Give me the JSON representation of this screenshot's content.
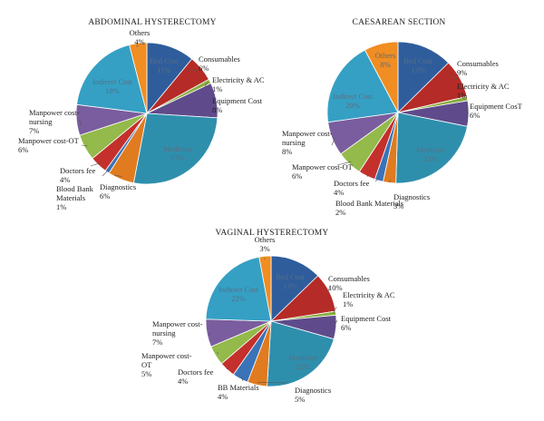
{
  "colors": {
    "Bed Cost": "#2f5d9c",
    "Consumables": "#b52b27",
    "Electricity & AC": "#8aad3d",
    "Equipment Cost": "#5f4b8b",
    "Medicine": "#2e8fad",
    "Diagnostics": "#e07b1f",
    "Blood Bank Materials": "#3a73b8",
    "BB Materials": "#3a73b8",
    "Doctors fee": "#c4302b",
    "Manpower cost-OT": "#93ba4a",
    "Manpower cost-nursing": "#7a5d9e",
    "Indirect Cost": "#35a0c4",
    "Others": "#f08d23"
  },
  "chart_data": [
    {
      "type": "pie",
      "title": "ABDOMINAL HYSTERECTOMY",
      "slices": [
        {
          "name": "Bed Cost",
          "value": 11,
          "text": "Bed Cost\n11%"
        },
        {
          "name": "Consumables",
          "value": 6,
          "text": "Consumables\n6%"
        },
        {
          "name": "Electricity & AC",
          "value": 1,
          "text": "Electricity & AC\n1%"
        },
        {
          "name": "Equipment Cost",
          "value": 8,
          "text": "Equipment Cost\n8%"
        },
        {
          "name": "Medicine",
          "value": 27,
          "text": "Medicine\n27%"
        },
        {
          "name": "Diagnostics",
          "value": 6,
          "text": "Diagnostics\n6%"
        },
        {
          "name": "Blood Bank Materials",
          "value": 1,
          "text": "Blood Bank\nMaterials\n1%"
        },
        {
          "name": "Doctors fee",
          "value": 4,
          "text": "Doctors fee\n4%"
        },
        {
          "name": "Manpower cost-OT",
          "value": 6,
          "text": "Manpower cost-OT\n6%"
        },
        {
          "name": "Manpower cost-nursing",
          "value": 7,
          "text": "Manpower cost-\nnursing\n7%"
        },
        {
          "name": "Indirect Cost",
          "value": 19,
          "text": "Indirect Cost\n19%"
        },
        {
          "name": "Others",
          "value": 4,
          "text": "Others\n4%"
        }
      ]
    },
    {
      "type": "pie",
      "title": "CAESAREAN SECTION",
      "slices": [
        {
          "name": "Bed Cost",
          "value": 13,
          "text": "Bed Cost\n13%"
        },
        {
          "name": "Consumables",
          "value": 9,
          "text": "Consumables\n9%"
        },
        {
          "name": "Electricity & AC",
          "value": 1,
          "text": "Electricity & AC\n1%"
        },
        {
          "name": "Equipment Cost",
          "value": 6,
          "text": "Equipment CosT\n6%"
        },
        {
          "name": "Medicine",
          "value": 23,
          "text": "Medicine\n23%"
        },
        {
          "name": "Diagnostics",
          "value": 3,
          "text": "Diagnostics\n3%"
        },
        {
          "name": "Blood Bank Materials",
          "value": 2,
          "text": "Blood Bank Materials\n2%"
        },
        {
          "name": "Doctors fee",
          "value": 4,
          "text": "Doctors fee\n4%"
        },
        {
          "name": "Manpower cost-OT",
          "value": 6,
          "text": "Manpower cost-OT\n6%"
        },
        {
          "name": "Manpower cost-nursing",
          "value": 8,
          "text": "Manpower cost-\nnursing\n8%"
        },
        {
          "name": "Indirect Cost",
          "value": 20,
          "text": "Indirect Cost\n20%"
        },
        {
          "name": "Others",
          "value": 8,
          "text": "Others\n8%"
        }
      ]
    },
    {
      "type": "pie",
      "title": "VAGINAL HYSTERECTOMY",
      "slices": [
        {
          "name": "Bed Cost",
          "value": 13,
          "text": "Bed Cost\n13%"
        },
        {
          "name": "Consumables",
          "value": 10,
          "text": "Consumables\n10%"
        },
        {
          "name": "Electricity & AC",
          "value": 1,
          "text": "Electricity & AC\n1%"
        },
        {
          "name": "Equipment Cost",
          "value": 6,
          "text": "Equipment Cost\n6%"
        },
        {
          "name": "Medicine",
          "value": 22,
          "text": "Medicine\n22%"
        },
        {
          "name": "Diagnostics",
          "value": 5,
          "text": "Diagnostics\n5%"
        },
        {
          "name": "BB Materials",
          "value": 4,
          "text": "BB Materials\n4%"
        },
        {
          "name": "Doctors fee",
          "value": 4,
          "text": "Doctors fee\n4%"
        },
        {
          "name": "Manpower cost-OT",
          "value": 5,
          "text": "Manpower cost-\nOT\n5%"
        },
        {
          "name": "Manpower cost-nursing",
          "value": 7,
          "text": "Manpower cost-\nnursing\n7%"
        },
        {
          "name": "Indirect Cost",
          "value": 22,
          "text": "Indirect Cost\n22%"
        },
        {
          "name": "Others",
          "value": 3,
          "text": "Others\n3%"
        }
      ]
    }
  ]
}
